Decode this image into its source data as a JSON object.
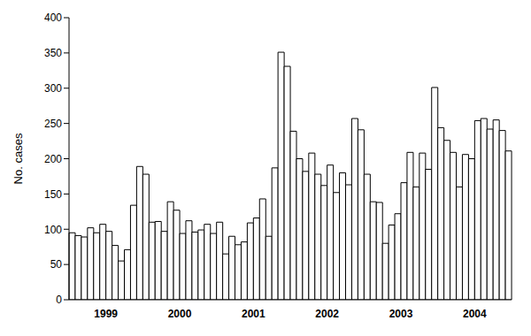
{
  "chart_data": {
    "type": "bar",
    "y_label": "No. cases",
    "categories": [
      null,
      null,
      null,
      null,
      null,
      null,
      "1999",
      null,
      null,
      null,
      null,
      null,
      null,
      null,
      null,
      null,
      null,
      null,
      "2000",
      null,
      null,
      null,
      null,
      null,
      null,
      null,
      null,
      null,
      null,
      null,
      "2001",
      null,
      null,
      null,
      null,
      null,
      null,
      null,
      null,
      null,
      null,
      null,
      "2002",
      null,
      null,
      null,
      null,
      null,
      null,
      null,
      null,
      null,
      null,
      null,
      "2003",
      null,
      null,
      null,
      null,
      null,
      null,
      null,
      null,
      null,
      null,
      null,
      "2004",
      null,
      null,
      null,
      null,
      null
    ],
    "values": [
      95,
      91,
      89,
      102,
      95,
      107,
      97,
      77,
      55,
      71,
      134,
      189,
      178,
      110,
      111,
      97,
      139,
      127,
      94,
      112,
      96,
      99,
      107,
      94,
      110,
      65,
      90,
      78,
      82,
      109,
      116,
      143,
      90,
      187,
      351,
      331,
      239,
      200,
      182,
      208,
      178,
      162,
      191,
      152,
      180,
      163,
      257,
      241,
      178,
      139,
      138,
      80,
      106,
      122,
      166,
      209,
      160,
      208,
      185,
      301,
      244,
      226,
      209,
      160,
      206,
      200,
      254,
      257,
      242,
      255,
      240,
      211
    ],
    "color": "#ffffff",
    "ylim": [
      0,
      400
    ],
    "yticks": [
      0,
      50,
      100,
      150,
      200,
      250,
      300,
      350,
      400
    ],
    "grid": false
  }
}
